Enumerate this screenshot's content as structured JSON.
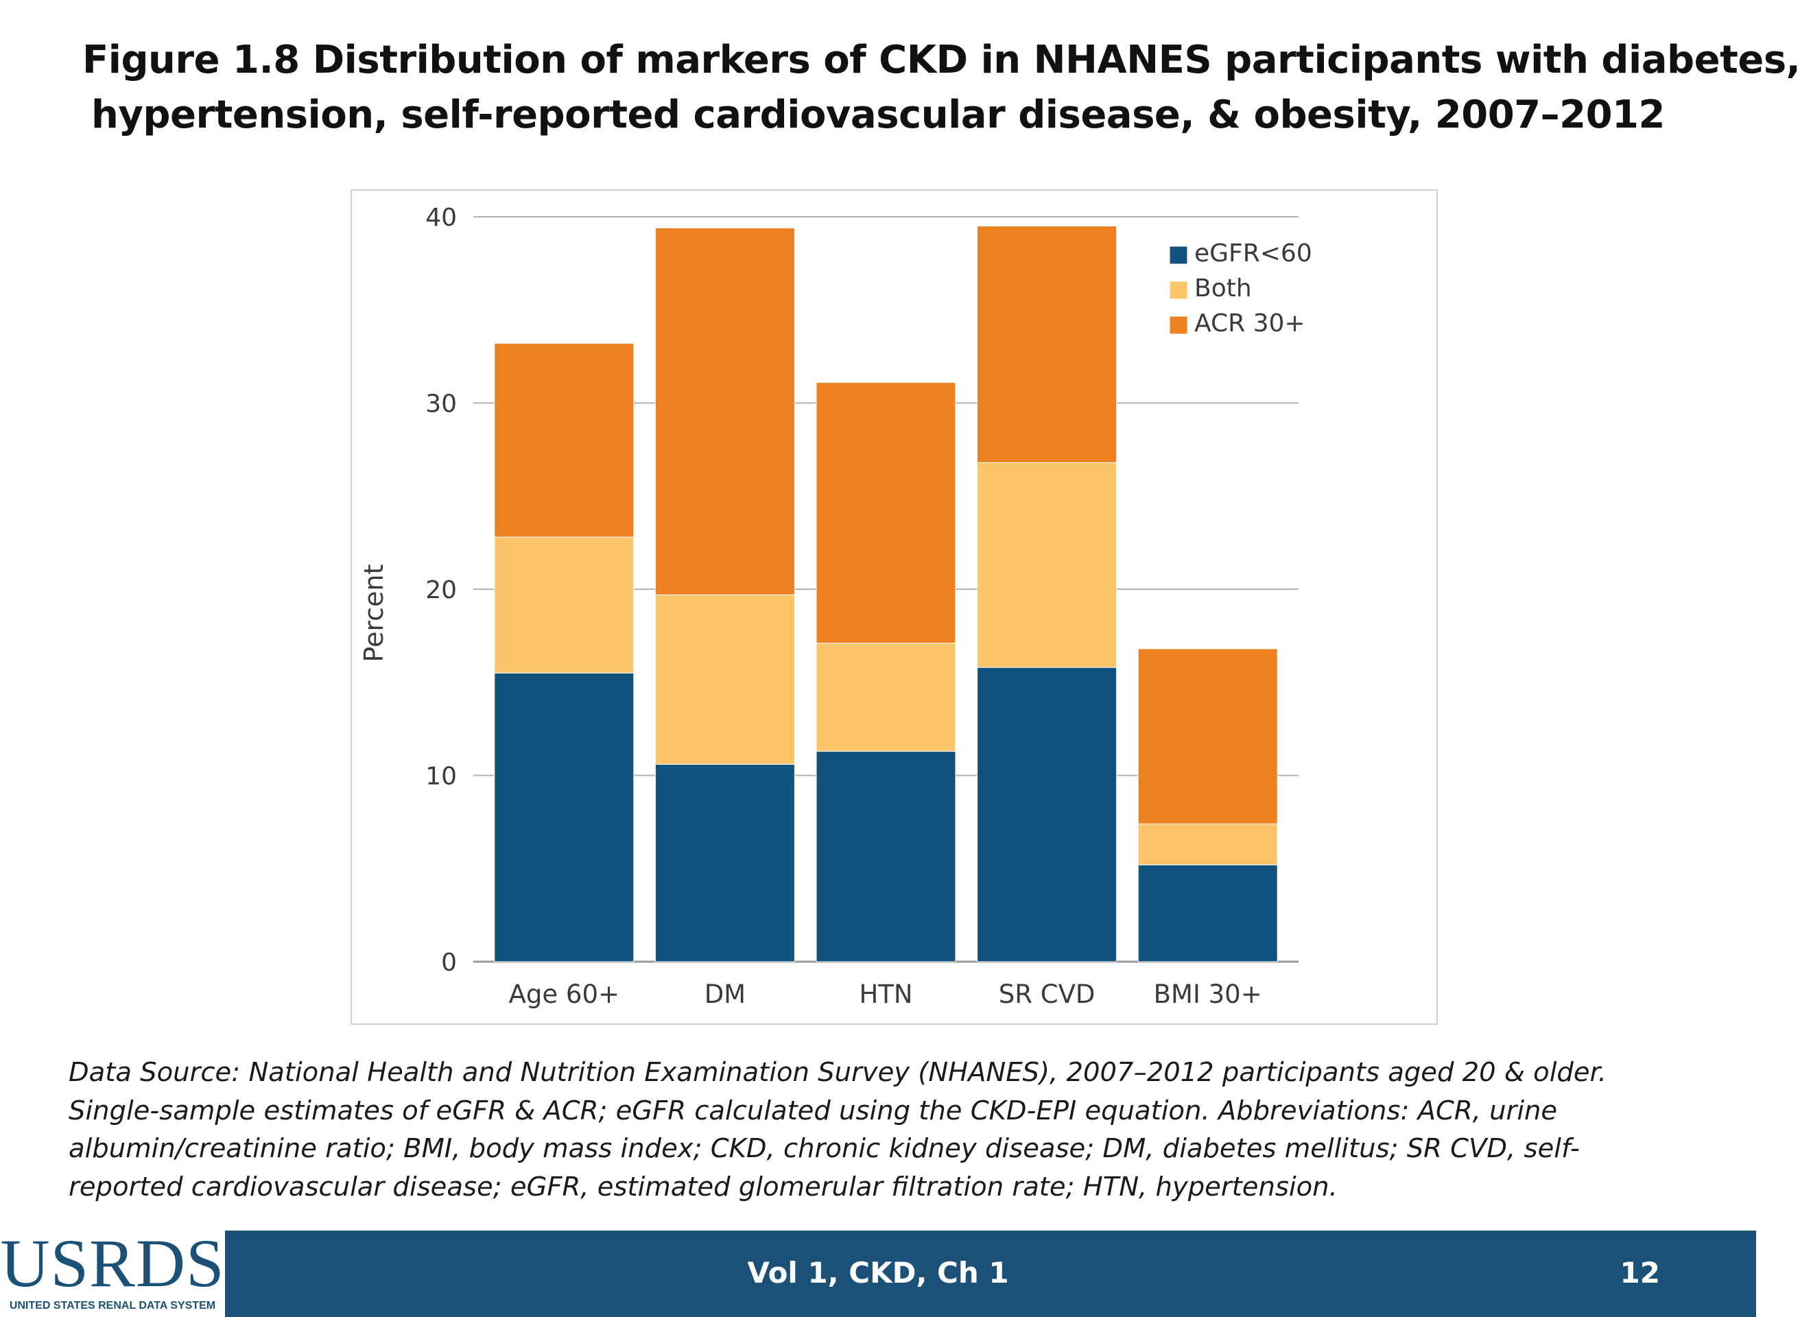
{
  "slide": {
    "title_line1": "Figure 1.8 Distribution of markers of CKD in NHANES participants with diabetes,",
    "title_line2": "hypertension, self-reported cardiovascular disease, & obesity, 2007–2012",
    "caption": "Data Source: National Health and Nutrition Examination Survey (NHANES), 2007–2012 participants aged 20 & older. Single-sample estimates of eGFR & ACR; eGFR calculated using the CKD-EPI equation. Abbreviations: ACR, urine albumin/creatinine ratio; BMI, body mass index; CKD, chronic kidney disease; DM, diabetes mellitus; SR CVD, self-reported cardiovascular disease; eGFR, estimated glomerular filtration rate; HTN, hypertension."
  },
  "footer": {
    "logo_text": "USRDS",
    "logo_subtext": "UNITED STATES RENAL DATA SYSTEM",
    "center_text": "Vol 1, CKD, Ch 1",
    "page_number": "12"
  },
  "colors": {
    "egfr": "#10527d",
    "both": "#fdc56a",
    "acr": "#ed8020",
    "footer_bar": "#1b5077",
    "gridline": "#b3b3b3"
  },
  "chart_data": {
    "type": "bar",
    "stacked": true,
    "title": "",
    "xlabel": "",
    "ylabel": "Percent",
    "ylim": [
      0,
      40
    ],
    "yticks": [
      0,
      10,
      20,
      30,
      40
    ],
    "grid": true,
    "legend_position": "top-right",
    "categories": [
      "Age 60+",
      "DM",
      "HTN",
      "SR CVD",
      "BMI 30+"
    ],
    "series": [
      {
        "name": "eGFR<60",
        "values": [
          15.5,
          10.6,
          11.3,
          15.8,
          5.2
        ]
      },
      {
        "name": "Both",
        "values": [
          7.3,
          9.1,
          5.8,
          11.0,
          2.2
        ]
      },
      {
        "name": "ACR 30+",
        "values": [
          10.4,
          19.7,
          14.0,
          12.7,
          9.4
        ]
      }
    ]
  }
}
